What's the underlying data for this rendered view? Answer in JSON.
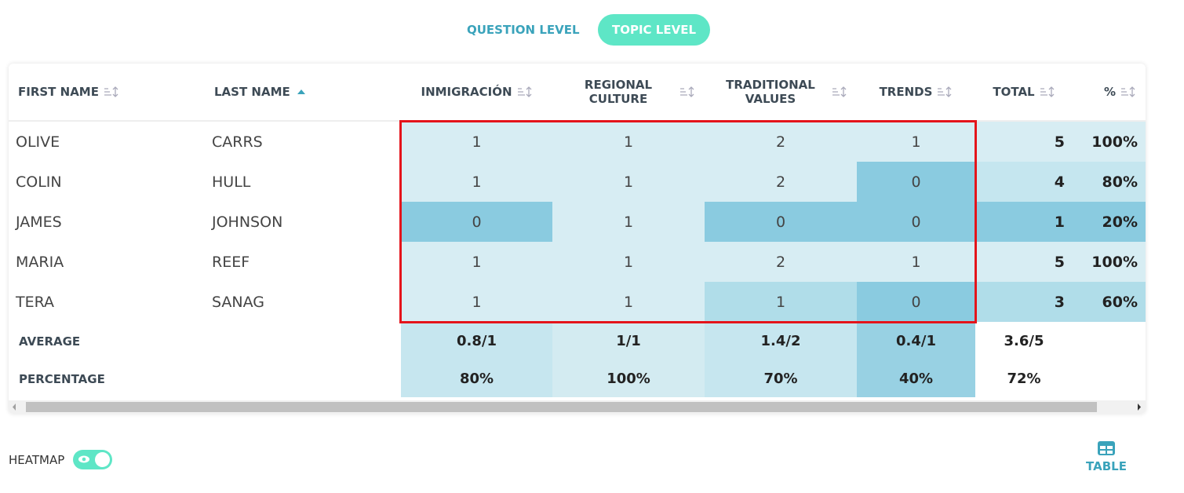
{
  "tabs": [
    "QUESTION LEVEL",
    "TOPIC LEVEL"
  ],
  "table": {
    "headers": [
      "FIRST NAME",
      "LAST NAME",
      "INMIGRACIÓN",
      "REGIONAL CULTURE",
      "TRADITIONAL VALUES",
      "TRENDS",
      "TOTAL",
      "%"
    ],
    "rows": [
      [
        "OLIVE",
        "CARRS",
        1,
        1,
        2,
        1,
        5,
        "100%"
      ],
      [
        "COLIN",
        "HULL",
        1,
        1,
        2,
        0,
        4,
        "80%"
      ],
      [
        "JAMES",
        "JOHNSON",
        0,
        1,
        0,
        0,
        1,
        "20%"
      ],
      [
        "MARIA",
        "REEF",
        1,
        1,
        2,
        1,
        5,
        "100%"
      ],
      [
        "TERA",
        "SANAG",
        1,
        1,
        1,
        0,
        3,
        "60%"
      ]
    ],
    "summary": [
      [
        "AVERAGE",
        "0.8/1",
        "1/1",
        "1.4/2",
        "0.4/1",
        "3.6/5"
      ],
      [
        "PERCENTAGE",
        "80%",
        "100%",
        "70%",
        "40%",
        "72%"
      ]
    ]
  },
  "controls": {
    "heatmap": "HEATMAP",
    "view": "TABLE"
  }
}
